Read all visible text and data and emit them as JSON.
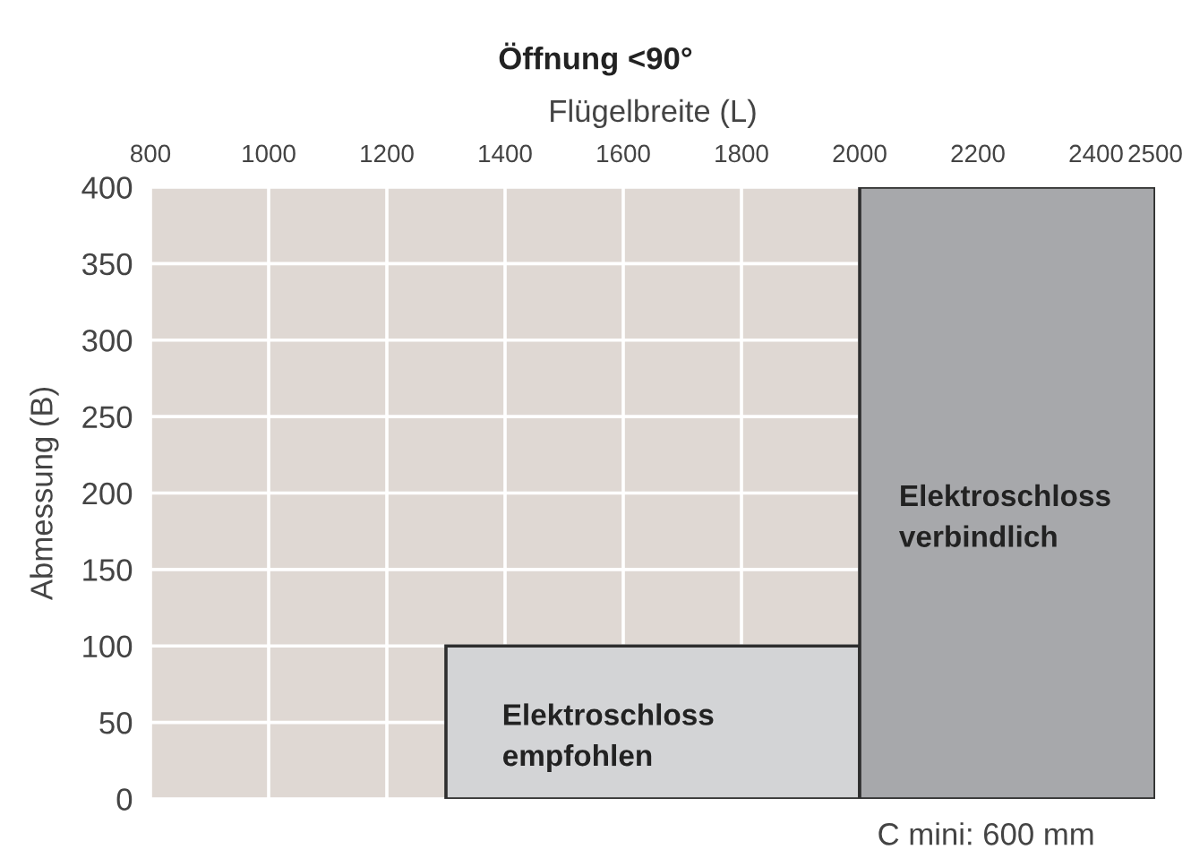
{
  "chart_data": {
    "type": "histogram",
    "title": "Öffnung <90°",
    "xlabel": "Flügelbreite (L)",
    "ylabel": "Abmessung (B)",
    "bins": [
      1300,
      2000,
      2500
    ],
    "values": [
      100,
      400
    ],
    "colors": [
      "#d3d4d6",
      "#a7a8ab"
    ],
    "xlim": [
      800,
      2500
    ],
    "xticks": [
      800,
      1000,
      1200,
      1400,
      1600,
      1800,
      2000,
      2200,
      2400,
      2500
    ],
    "ylim": [
      0,
      400
    ],
    "yticks": [
      0,
      50,
      100,
      150,
      200,
      250,
      300,
      350,
      400
    ],
    "grid": true,
    "annotations": [
      "Elektroschloss\nempfohlen",
      "Elektroschloss\nverbindlich",
      "C mini: 600 mm"
    ]
  }
}
